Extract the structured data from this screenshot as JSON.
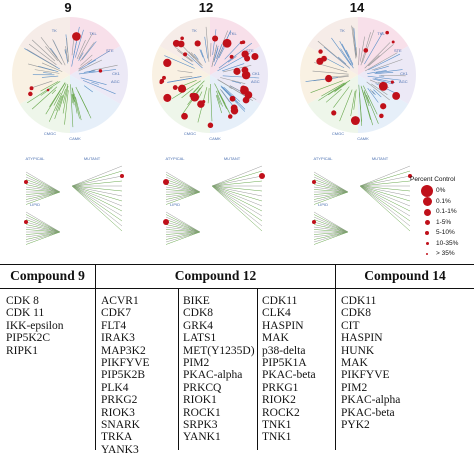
{
  "figure": {
    "columns": [
      "9",
      "12",
      "14"
    ],
    "kinase_groups": [
      "TKL",
      "STE",
      "TK",
      "CK1",
      "AGC",
      "CAMK",
      "CMGC",
      "ATYPICAL",
      "MUTANT",
      "LIPID"
    ],
    "legend": {
      "title": "Percent Control",
      "items": [
        "0%",
        "0.1%",
        "0.1-1%",
        "1-5%",
        "5-10%",
        "10-35%",
        "> 35%"
      ]
    },
    "colors": {
      "hit": "#c0101a",
      "branch_green": "#6aa84f",
      "branch_gray": "#9a9a9a"
    }
  },
  "table": {
    "headers": [
      "Compound 9",
      "Compound 12",
      "Compound 14"
    ],
    "compound9": [
      "CDK 8",
      "CDK 11",
      "IKK-epsilon",
      "PIP5K2C",
      "RIPK1"
    ],
    "compound12": {
      "col1": [
        "ACVR1",
        "CDK7",
        "FLT4",
        "IRAK3",
        "MAP3K2",
        "PIKFYVE",
        "PIP5K2B",
        "PLK4",
        "PRKG2",
        "RIOK3",
        "SNARK",
        "TRKA",
        "YANK3"
      ],
      "col2": [
        "BIKE",
        "CDK8",
        "GRK4",
        "LATS1",
        "MET(Y1235D)",
        "PIM2",
        "PKAC-alpha",
        "PRKCQ",
        "RIOK1",
        "ROCK1",
        "SRPK3",
        "YANK1"
      ],
      "col3": [
        "CDK11",
        "CLK4",
        "HASPIN",
        "MAK",
        "p38-delta",
        "PIP5K1A",
        "PKAC-beta",
        "PRKG1",
        "RIOK2",
        "ROCK2",
        "TNK1",
        "TNK1"
      ]
    },
    "compound14": [
      "CDK11",
      "CDK8",
      "CIT",
      "HASPIN",
      "HUNK",
      "MAK",
      "PIKFYVE",
      "PIM2",
      "PKAC-alpha",
      "PKAC-beta",
      "PYK2"
    ]
  }
}
